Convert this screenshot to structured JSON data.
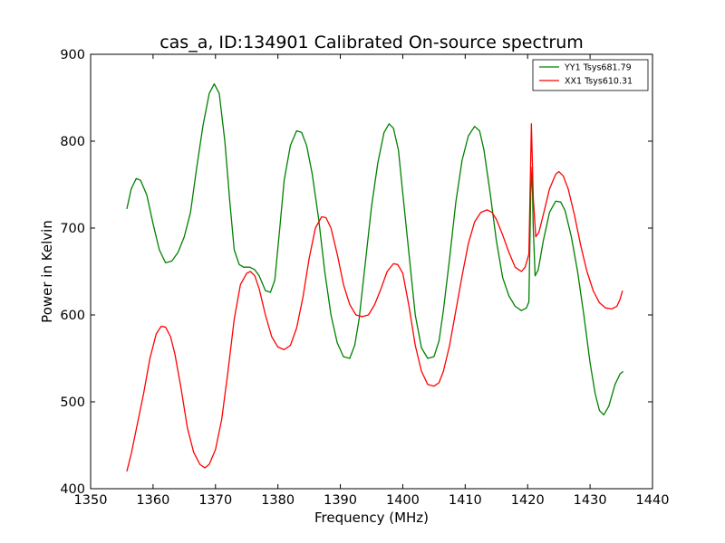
{
  "chart_data": {
    "type": "line",
    "title": "cas_a, ID:134901 Calibrated On-source spectrum",
    "xlabel": "Frequency (MHz)",
    "ylabel": "Power in Kelvin",
    "xlim": [
      1350,
      1440
    ],
    "ylim": [
      400,
      900
    ],
    "xticks": [
      1350,
      1360,
      1370,
      1380,
      1390,
      1400,
      1410,
      1420,
      1430,
      1440
    ],
    "yticks": [
      400,
      500,
      600,
      700,
      800,
      900
    ],
    "grid": false,
    "legend_position": "top-right",
    "series": [
      {
        "name": "YY1 Tsys681.79",
        "color": "#008000",
        "points": [
          [
            1355.8,
            722
          ],
          [
            1356.5,
            745
          ],
          [
            1357.3,
            757
          ],
          [
            1358.0,
            755
          ],
          [
            1359.0,
            738
          ],
          [
            1360.0,
            705
          ],
          [
            1361.0,
            675
          ],
          [
            1362.0,
            660
          ],
          [
            1363.0,
            662
          ],
          [
            1364.0,
            672
          ],
          [
            1365.0,
            690
          ],
          [
            1366.0,
            718
          ],
          [
            1367.0,
            770
          ],
          [
            1368.0,
            818
          ],
          [
            1369.0,
            855
          ],
          [
            1369.8,
            866
          ],
          [
            1370.6,
            855
          ],
          [
            1371.5,
            800
          ],
          [
            1372.3,
            730
          ],
          [
            1373.0,
            675
          ],
          [
            1373.8,
            658
          ],
          [
            1374.5,
            655
          ],
          [
            1375.5,
            655
          ],
          [
            1376.3,
            652
          ],
          [
            1377.0,
            645
          ],
          [
            1378.0,
            628
          ],
          [
            1378.8,
            626
          ],
          [
            1379.5,
            640
          ],
          [
            1380.3,
            700
          ],
          [
            1381.0,
            755
          ],
          [
            1382.0,
            795
          ],
          [
            1383.0,
            812
          ],
          [
            1383.8,
            810
          ],
          [
            1384.6,
            795
          ],
          [
            1385.5,
            762
          ],
          [
            1386.5,
            712
          ],
          [
            1387.5,
            650
          ],
          [
            1388.5,
            600
          ],
          [
            1389.5,
            568
          ],
          [
            1390.5,
            552
          ],
          [
            1391.5,
            550
          ],
          [
            1392.3,
            565
          ],
          [
            1393.0,
            595
          ],
          [
            1394.0,
            660
          ],
          [
            1395.0,
            725
          ],
          [
            1396.0,
            775
          ],
          [
            1397.0,
            810
          ],
          [
            1397.8,
            820
          ],
          [
            1398.5,
            815
          ],
          [
            1399.3,
            790
          ],
          [
            1400.0,
            740
          ],
          [
            1401.0,
            670
          ],
          [
            1402.0,
            600
          ],
          [
            1403.0,
            562
          ],
          [
            1404.0,
            550
          ],
          [
            1405.0,
            552
          ],
          [
            1405.8,
            570
          ],
          [
            1406.5,
            605
          ],
          [
            1407.5,
            665
          ],
          [
            1408.5,
            730
          ],
          [
            1409.5,
            778
          ],
          [
            1410.5,
            806
          ],
          [
            1411.5,
            817
          ],
          [
            1412.3,
            812
          ],
          [
            1413.0,
            790
          ],
          [
            1414.0,
            740
          ],
          [
            1415.0,
            685
          ],
          [
            1416.0,
            643
          ],
          [
            1417.0,
            622
          ],
          [
            1418.0,
            610
          ],
          [
            1419.0,
            605
          ],
          [
            1419.8,
            608
          ],
          [
            1420.2,
            615
          ],
          [
            1420.5,
            740
          ],
          [
            1420.7,
            770
          ],
          [
            1420.9,
            700
          ],
          [
            1421.2,
            645
          ],
          [
            1421.7,
            652
          ],
          [
            1422.5,
            685
          ],
          [
            1423.5,
            718
          ],
          [
            1424.5,
            731
          ],
          [
            1425.3,
            730
          ],
          [
            1426.0,
            720
          ],
          [
            1427.0,
            690
          ],
          [
            1428.0,
            650
          ],
          [
            1429.0,
            600
          ],
          [
            1430.0,
            545
          ],
          [
            1430.8,
            510
          ],
          [
            1431.5,
            490
          ],
          [
            1432.2,
            485
          ],
          [
            1433.0,
            495
          ],
          [
            1434.0,
            520
          ],
          [
            1434.8,
            532
          ],
          [
            1435.3,
            535
          ]
        ]
      },
      {
        "name": "XX1 Tsys610.31",
        "color": "#ff0000",
        "points": [
          [
            1355.8,
            420
          ],
          [
            1356.5,
            440
          ],
          [
            1357.5,
            475
          ],
          [
            1358.5,
            510
          ],
          [
            1359.5,
            550
          ],
          [
            1360.5,
            578
          ],
          [
            1361.3,
            587
          ],
          [
            1362.0,
            586
          ],
          [
            1362.8,
            575
          ],
          [
            1363.5,
            555
          ],
          [
            1364.5,
            515
          ],
          [
            1365.5,
            470
          ],
          [
            1366.5,
            442
          ],
          [
            1367.5,
            428
          ],
          [
            1368.3,
            424
          ],
          [
            1369.0,
            428
          ],
          [
            1370.0,
            445
          ],
          [
            1371.0,
            480
          ],
          [
            1372.0,
            535
          ],
          [
            1373.0,
            595
          ],
          [
            1374.0,
            635
          ],
          [
            1375.0,
            648
          ],
          [
            1375.6,
            650
          ],
          [
            1376.3,
            645
          ],
          [
            1377.0,
            630
          ],
          [
            1378.0,
            600
          ],
          [
            1379.0,
            575
          ],
          [
            1380.0,
            563
          ],
          [
            1381.0,
            560
          ],
          [
            1382.0,
            565
          ],
          [
            1383.0,
            585
          ],
          [
            1384.0,
            620
          ],
          [
            1385.0,
            665
          ],
          [
            1386.0,
            700
          ],
          [
            1387.0,
            713
          ],
          [
            1387.7,
            712
          ],
          [
            1388.5,
            700
          ],
          [
            1389.5,
            670
          ],
          [
            1390.5,
            635
          ],
          [
            1391.5,
            612
          ],
          [
            1392.5,
            600
          ],
          [
            1393.5,
            598
          ],
          [
            1394.5,
            600
          ],
          [
            1395.5,
            612
          ],
          [
            1396.5,
            630
          ],
          [
            1397.5,
            650
          ],
          [
            1398.5,
            659
          ],
          [
            1399.2,
            658
          ],
          [
            1400.0,
            648
          ],
          [
            1401.0,
            610
          ],
          [
            1402.0,
            565
          ],
          [
            1403.0,
            535
          ],
          [
            1404.0,
            520
          ],
          [
            1405.0,
            518
          ],
          [
            1405.8,
            522
          ],
          [
            1406.5,
            535
          ],
          [
            1407.5,
            565
          ],
          [
            1408.5,
            605
          ],
          [
            1409.5,
            645
          ],
          [
            1410.5,
            682
          ],
          [
            1411.5,
            707
          ],
          [
            1412.5,
            718
          ],
          [
            1413.5,
            721
          ],
          [
            1414.3,
            718
          ],
          [
            1415.0,
            710
          ],
          [
            1416.0,
            692
          ],
          [
            1417.0,
            672
          ],
          [
            1418.0,
            655
          ],
          [
            1419.0,
            650
          ],
          [
            1419.6,
            655
          ],
          [
            1420.2,
            670
          ],
          [
            1420.6,
            820
          ],
          [
            1420.9,
            735
          ],
          [
            1421.3,
            690
          ],
          [
            1421.8,
            695
          ],
          [
            1422.5,
            715
          ],
          [
            1423.5,
            745
          ],
          [
            1424.5,
            762
          ],
          [
            1425.0,
            765
          ],
          [
            1425.7,
            760
          ],
          [
            1426.5,
            745
          ],
          [
            1427.5,
            715
          ],
          [
            1428.5,
            680
          ],
          [
            1429.5,
            650
          ],
          [
            1430.5,
            628
          ],
          [
            1431.5,
            614
          ],
          [
            1432.5,
            608
          ],
          [
            1433.5,
            607
          ],
          [
            1434.3,
            610
          ],
          [
            1434.8,
            618
          ],
          [
            1435.2,
            628
          ]
        ]
      }
    ]
  }
}
